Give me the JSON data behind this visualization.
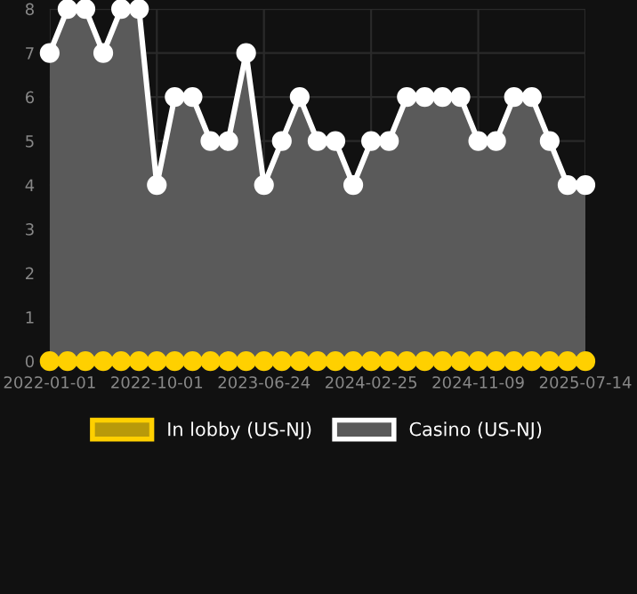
{
  "chart_data": {
    "type": "area",
    "categories": [
      "2022-01-01",
      null,
      null,
      null,
      null,
      null,
      "2022-10-01",
      null,
      null,
      null,
      null,
      null,
      "2023-06-24",
      null,
      null,
      null,
      null,
      null,
      "2024-02-25",
      null,
      null,
      null,
      null,
      null,
      "2024-11-09",
      null,
      null,
      null,
      null,
      null,
      "2025-07-14"
    ],
    "series": [
      {
        "name": "In lobby (US-NJ)",
        "type": "line",
        "color": "#ffd000",
        "values": [
          0,
          0,
          0,
          0,
          0,
          0,
          0,
          0,
          0,
          0,
          0,
          0,
          0,
          0,
          0,
          0,
          0,
          0,
          0,
          0,
          0,
          0,
          0,
          0,
          0,
          0,
          0,
          0,
          0,
          0,
          0
        ]
      },
      {
        "name": "Casino (US-NJ)",
        "color": "#ffffff",
        "values": [
          7,
          8,
          8,
          7,
          8,
          8,
          4,
          6,
          6,
          5,
          5,
          7,
          4,
          5,
          6,
          5,
          5,
          4,
          5,
          5,
          6,
          6,
          6,
          6,
          5,
          5,
          6,
          6,
          5,
          4,
          4
        ]
      }
    ],
    "ylim": [
      0,
      8
    ],
    "yticks": [
      0,
      1,
      2,
      3,
      4,
      5,
      6,
      7,
      8
    ],
    "grid": true,
    "legend": "bottom",
    "marker": "circle",
    "line_style": "solid"
  }
}
